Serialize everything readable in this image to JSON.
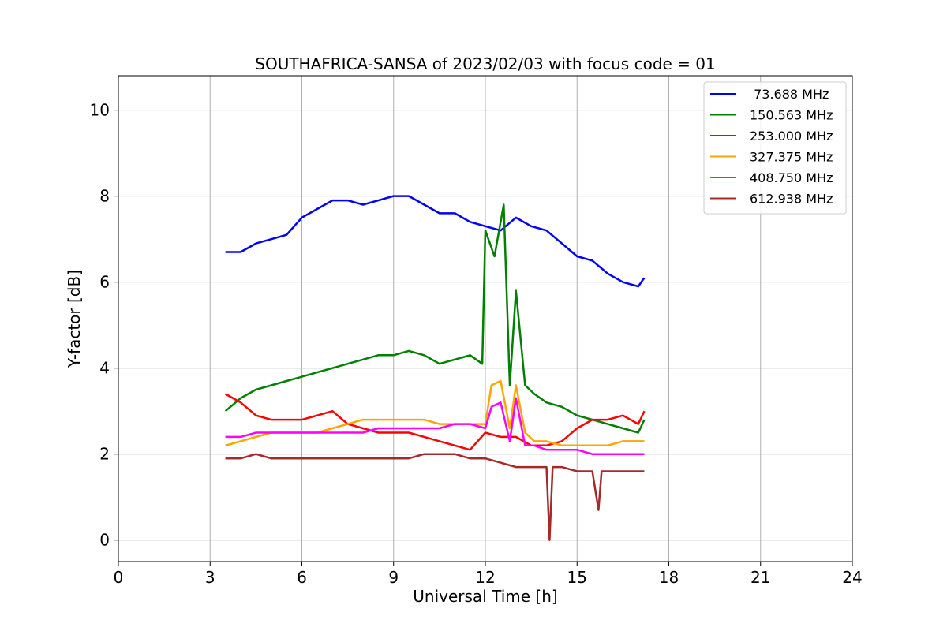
{
  "chart_data": {
    "type": "line",
    "title": "SOUTHAFRICA-SANSA of 2023/02/03 with focus code = 01",
    "xlabel": "Universal Time [h]",
    "ylabel": "Y-factor [dB]",
    "xlim": [
      0,
      24
    ],
    "ylim": [
      -0.5,
      10.8
    ],
    "xticks": [
      0,
      3,
      6,
      9,
      12,
      15,
      18,
      21,
      24
    ],
    "yticks": [
      0,
      2,
      4,
      6,
      8,
      10
    ],
    "grid": true,
    "legend_position": "top-right",
    "series": [
      {
        "name": " 73.688 MHz",
        "color": "#0000ff",
        "x": [
          3.5,
          4.0,
          4.5,
          5.0,
          5.5,
          6.0,
          6.5,
          7.0,
          7.5,
          8.0,
          8.5,
          9.0,
          9.5,
          10.0,
          10.5,
          11.0,
          11.5,
          12.0,
          12.5,
          13.0,
          13.5,
          14.0,
          14.5,
          15.0,
          15.5,
          16.0,
          16.5,
          17.0,
          17.2
        ],
        "y": [
          6.7,
          6.7,
          6.9,
          7.0,
          7.1,
          7.5,
          7.7,
          7.9,
          7.9,
          7.8,
          7.9,
          8.0,
          8.0,
          7.8,
          7.6,
          7.6,
          7.4,
          7.3,
          7.2,
          7.5,
          7.3,
          7.2,
          6.9,
          6.6,
          6.5,
          6.2,
          6.0,
          5.9,
          6.1
        ]
      },
      {
        "name": "150.563 MHz",
        "color": "#008000",
        "x": [
          3.5,
          4.0,
          4.5,
          5.0,
          5.5,
          6.0,
          6.5,
          7.0,
          7.5,
          8.0,
          8.5,
          9.0,
          9.5,
          10.0,
          10.5,
          11.0,
          11.5,
          11.9,
          12.0,
          12.3,
          12.6,
          12.8,
          13.0,
          13.3,
          13.6,
          14.0,
          14.5,
          15.0,
          15.5,
          16.0,
          16.5,
          17.0,
          17.2
        ],
        "y": [
          3.0,
          3.3,
          3.5,
          3.6,
          3.7,
          3.8,
          3.9,
          4.0,
          4.1,
          4.2,
          4.3,
          4.3,
          4.4,
          4.3,
          4.1,
          4.2,
          4.3,
          4.1,
          7.2,
          6.6,
          7.8,
          3.6,
          5.8,
          3.6,
          3.4,
          3.2,
          3.1,
          2.9,
          2.8,
          2.7,
          2.6,
          2.5,
          2.8
        ]
      },
      {
        "name": "253.000 MHz",
        "color": "#ff0000",
        "x": [
          3.5,
          4.0,
          4.5,
          5.0,
          5.5,
          6.0,
          6.5,
          7.0,
          7.5,
          8.0,
          8.5,
          9.0,
          9.5,
          10.0,
          10.5,
          11.0,
          11.5,
          12.0,
          12.5,
          13.0,
          13.5,
          14.0,
          14.5,
          15.0,
          15.5,
          16.0,
          16.5,
          17.0,
          17.2
        ],
        "y": [
          3.4,
          3.2,
          2.9,
          2.8,
          2.8,
          2.8,
          2.9,
          3.0,
          2.7,
          2.6,
          2.5,
          2.5,
          2.5,
          2.4,
          2.3,
          2.2,
          2.1,
          2.5,
          2.4,
          2.4,
          2.2,
          2.2,
          2.3,
          2.6,
          2.8,
          2.8,
          2.9,
          2.7,
          3.0
        ]
      },
      {
        "name": "327.375 MHz",
        "color": "#ffa500",
        "x": [
          3.5,
          4.0,
          4.5,
          5.0,
          5.5,
          6.0,
          6.5,
          7.0,
          7.5,
          8.0,
          8.5,
          9.0,
          9.5,
          10.0,
          10.5,
          11.0,
          11.5,
          12.0,
          12.2,
          12.5,
          12.8,
          13.0,
          13.3,
          13.6,
          14.0,
          14.5,
          15.0,
          15.5,
          16.0,
          16.5,
          17.0,
          17.2
        ],
        "y": [
          2.2,
          2.3,
          2.4,
          2.5,
          2.5,
          2.5,
          2.5,
          2.6,
          2.7,
          2.8,
          2.8,
          2.8,
          2.8,
          2.8,
          2.7,
          2.7,
          2.7,
          2.7,
          3.6,
          3.7,
          2.6,
          3.6,
          2.5,
          2.3,
          2.3,
          2.2,
          2.2,
          2.2,
          2.2,
          2.3,
          2.3,
          2.3
        ]
      },
      {
        "name": "408.750 MHz",
        "color": "#ff00ff",
        "x": [
          3.5,
          4.0,
          4.5,
          5.0,
          5.5,
          6.0,
          6.5,
          7.0,
          7.5,
          8.0,
          8.5,
          9.0,
          9.5,
          10.0,
          10.5,
          11.0,
          11.5,
          12.0,
          12.2,
          12.5,
          12.8,
          13.0,
          13.3,
          13.6,
          14.0,
          14.5,
          15.0,
          15.5,
          16.0,
          16.5,
          17.0,
          17.2
        ],
        "y": [
          2.4,
          2.4,
          2.5,
          2.5,
          2.5,
          2.5,
          2.5,
          2.5,
          2.5,
          2.5,
          2.6,
          2.6,
          2.6,
          2.6,
          2.6,
          2.7,
          2.7,
          2.6,
          3.1,
          3.2,
          2.3,
          3.3,
          2.2,
          2.2,
          2.1,
          2.1,
          2.1,
          2.0,
          2.0,
          2.0,
          2.0,
          2.0
        ]
      },
      {
        "name": "612.938 MHz",
        "color": "#a52a2a",
        "x": [
          3.5,
          4.0,
          4.5,
          5.0,
          5.5,
          6.0,
          6.5,
          7.0,
          7.5,
          8.0,
          8.5,
          9.0,
          9.5,
          10.0,
          10.5,
          11.0,
          11.5,
          12.0,
          12.5,
          13.0,
          13.5,
          14.0,
          14.1,
          14.2,
          14.5,
          15.0,
          15.5,
          15.7,
          15.8,
          16.0,
          16.5,
          17.0,
          17.2
        ],
        "y": [
          1.9,
          1.9,
          2.0,
          1.9,
          1.9,
          1.9,
          1.9,
          1.9,
          1.9,
          1.9,
          1.9,
          1.9,
          1.9,
          2.0,
          2.0,
          2.0,
          1.9,
          1.9,
          1.8,
          1.7,
          1.7,
          1.7,
          0.0,
          1.7,
          1.7,
          1.6,
          1.6,
          0.7,
          1.6,
          1.6,
          1.6,
          1.6,
          1.6
        ]
      }
    ]
  }
}
